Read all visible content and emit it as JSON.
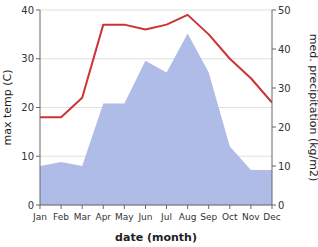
{
  "chart_data": {
    "type": "line",
    "categories": [
      "Jan",
      "Feb",
      "Mar",
      "Apr",
      "May",
      "Jun",
      "Jul",
      "Aug",
      "Sep",
      "Oct",
      "Nov",
      "Dec"
    ],
    "xlabel": "date (month)",
    "ylabel": "max temp (C)",
    "y2label": "med. precipitation (kg/m2)",
    "series": [
      {
        "type": "line",
        "color": "#cc3333",
        "values": [
          18,
          18,
          22,
          37,
          37,
          36,
          37,
          39,
          35,
          30,
          26,
          21
        ]
      },
      {
        "type": "area",
        "color": "#b0bce8",
        "axis": "y2",
        "values": [
          10,
          11,
          10,
          26,
          26,
          37,
          34,
          44,
          34,
          15,
          9,
          9
        ]
      }
    ],
    "ylim": [
      0,
      40
    ],
    "yticks": [
      0,
      10,
      20,
      30,
      40
    ],
    "y2lim": [
      0,
      50
    ],
    "y2ticks": [
      0,
      10,
      20,
      30,
      40,
      50
    ],
    "grid": true
  }
}
